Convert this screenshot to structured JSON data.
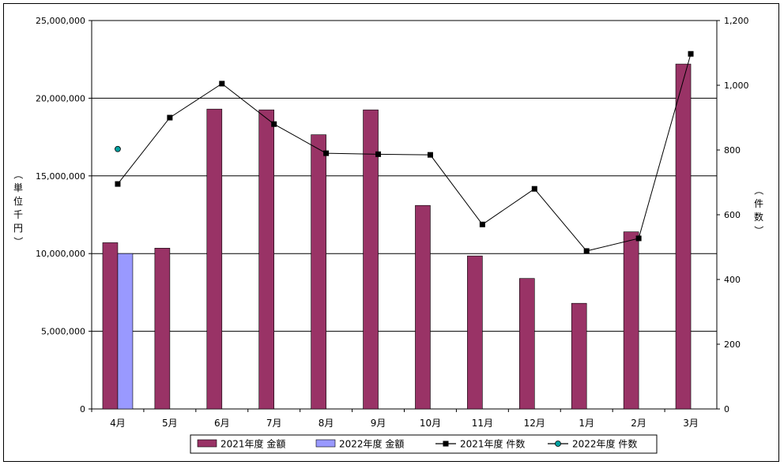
{
  "chart_data": {
    "type": "bar+line",
    "categories": [
      "4月",
      "5月",
      "6月",
      "7月",
      "8月",
      "9月",
      "10月",
      "11月",
      "12月",
      "1月",
      "2月",
      "3月"
    ],
    "series": [
      {
        "name": "2021年度 金額",
        "kind": "bar",
        "axis": "left",
        "color": "#993366",
        "values": [
          10700000,
          10350000,
          19300000,
          19250000,
          17650000,
          19250000,
          13100000,
          9850000,
          8400000,
          6800000,
          11400000,
          22200000
        ]
      },
      {
        "name": "2022年度 金額",
        "kind": "bar",
        "axis": "left",
        "color": "#9999ff",
        "values": [
          10000000,
          null,
          null,
          null,
          null,
          null,
          null,
          null,
          null,
          null,
          null,
          null
        ]
      },
      {
        "name": "2021年度 件数",
        "kind": "line",
        "axis": "right",
        "color": "#000000",
        "values": [
          695,
          900,
          1005,
          880,
          790,
          787,
          785,
          570,
          680,
          488,
          527,
          1097
        ]
      },
      {
        "name": "2022年度 件数",
        "kind": "line",
        "axis": "right",
        "color": "#00a0a0",
        "values": [
          803,
          null,
          null,
          null,
          null,
          null,
          null,
          null,
          null,
          null,
          null,
          null
        ]
      }
    ],
    "y_left": {
      "label_chars": [
        "（",
        "単",
        "位",
        "千",
        "円",
        "）"
      ],
      "ylim": [
        0,
        25000000
      ],
      "ticks": [
        "0",
        "5,000,000",
        "10,000,000",
        "15,000,000",
        "20,000,000",
        "25,000,000"
      ]
    },
    "y_right": {
      "label_chars": [
        "（",
        "件",
        "数",
        "）"
      ],
      "ylim": [
        0,
        1200
      ],
      "ticks": [
        "0",
        "200",
        "400",
        "600",
        "800",
        "1,000",
        "1,200"
      ]
    },
    "grid": true,
    "legend_position": "bottom"
  }
}
